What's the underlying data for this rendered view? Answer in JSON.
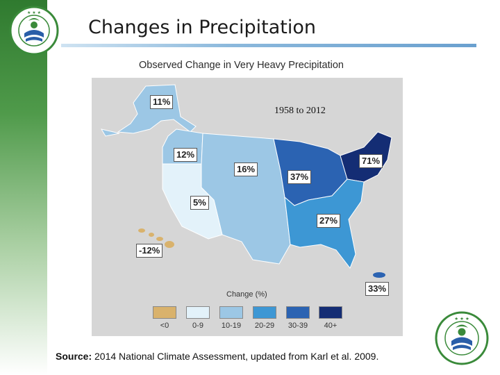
{
  "slide": {
    "title": "Changes in Precipitation"
  },
  "map": {
    "title": "Observed Change in Very Heavy Precipitation",
    "period": "1958 to 2012",
    "regions": [
      {
        "name": "Alaska",
        "value": "11%",
        "category": "10-19"
      },
      {
        "name": "Northwest",
        "value": "12%",
        "category": "10-19"
      },
      {
        "name": "Great Plains",
        "value": "16%",
        "category": "10-19"
      },
      {
        "name": "Southwest",
        "value": "5%",
        "category": "0-9"
      },
      {
        "name": "Midwest",
        "value": "37%",
        "category": "30-39"
      },
      {
        "name": "Northeast",
        "value": "71%",
        "category": "40+"
      },
      {
        "name": "Southeast",
        "value": "27%",
        "category": "20-29"
      },
      {
        "name": "Hawaii",
        "value": "-12%",
        "category": "<0"
      },
      {
        "name": "Puerto Rico",
        "value": "33%",
        "category": "30-39"
      }
    ],
    "legend": {
      "title": "Change (%)",
      "items": [
        {
          "label": "<0",
          "color": "#d9b26c"
        },
        {
          "label": "0-9",
          "color": "#e3f2fa"
        },
        {
          "label": "10-19",
          "color": "#9cc7e5"
        },
        {
          "label": "20-29",
          "color": "#3d97d4"
        },
        {
          "label": "30-39",
          "color": "#2b63b2"
        },
        {
          "label": "40+",
          "color": "#142d74"
        }
      ]
    }
  },
  "source": {
    "prefix": "Source:",
    "text": " 2014 National Climate Assessment, updated from Karl et al. 2009."
  },
  "colors": {
    "brand_green": "#2f7a2f",
    "seal_green": "#3a8a3a",
    "seal_blue": "#2a5ea8"
  },
  "logos": {
    "top_left": "epa-seal",
    "bottom_right": "epa-seal",
    "seal_text_top": "UNITED STATES",
    "seal_text_bottom": "ENVIRONMENTAL PROTECTION AGENCY"
  }
}
